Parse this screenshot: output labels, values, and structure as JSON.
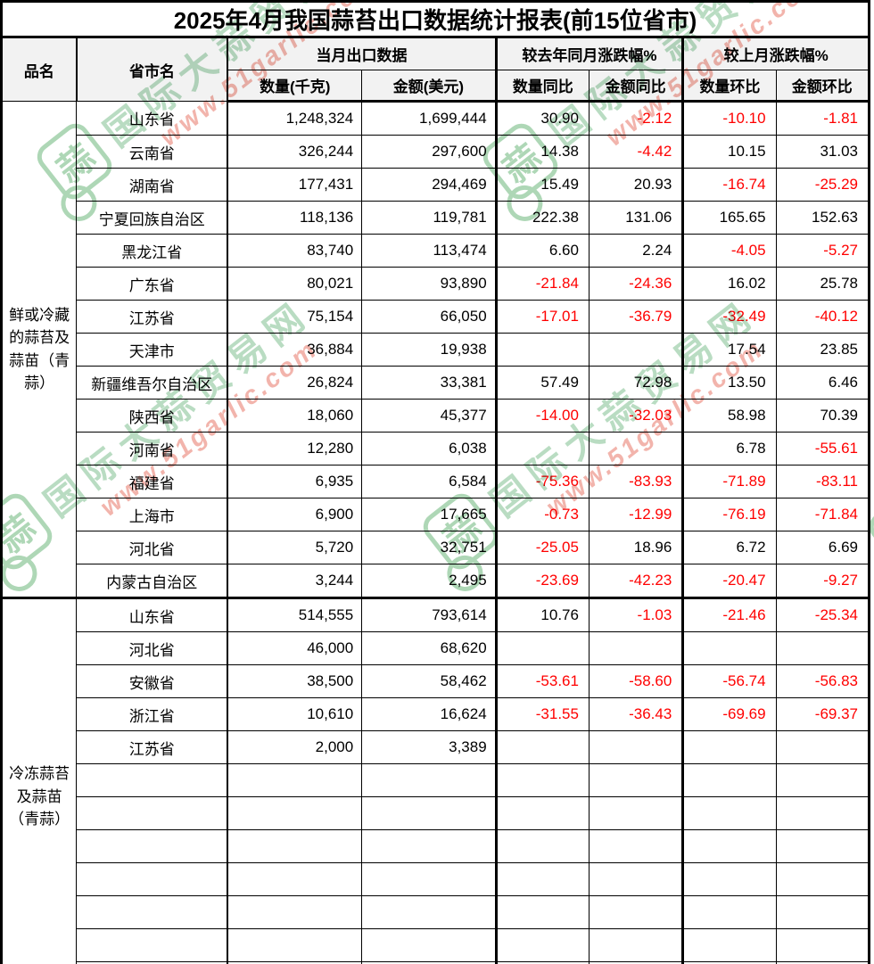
{
  "title": "2025年4月我国蒜苔出口数据统计报表(前15位省市)",
  "header": {
    "col_product": "品名",
    "col_province": "省市名",
    "group_current": "当月出口数据",
    "group_yoy": "较去年同月涨跌幅%",
    "group_mom": "较上月涨跌幅%",
    "sub_qty": "数量(千克)",
    "sub_amt": "金额(美元)",
    "sub_qty_yoy": "数量同比",
    "sub_amt_yoy": "金额同比",
    "sub_qty_mom": "数量环比",
    "sub_amt_mom": "金额环比"
  },
  "groups": [
    {
      "product": "鲜或冷藏的蒜苔及蒜苗（青蒜）",
      "rows": [
        {
          "province": "山东省",
          "qty": "1,248,324",
          "amt": "1,699,444",
          "qty_yoy": "30.90",
          "amt_yoy": "-2.12",
          "qty_mom": "-10.10",
          "amt_mom": "-1.81"
        },
        {
          "province": "云南省",
          "qty": "326,244",
          "amt": "297,600",
          "qty_yoy": "14.38",
          "amt_yoy": "-4.42",
          "qty_mom": "10.15",
          "amt_mom": "31.03"
        },
        {
          "province": "湖南省",
          "qty": "177,431",
          "amt": "294,469",
          "qty_yoy": "15.49",
          "amt_yoy": "20.93",
          "qty_mom": "-16.74",
          "amt_mom": "-25.29"
        },
        {
          "province": "宁夏回族自治区",
          "qty": "118,136",
          "amt": "119,781",
          "qty_yoy": "222.38",
          "amt_yoy": "131.06",
          "qty_mom": "165.65",
          "amt_mom": "152.63"
        },
        {
          "province": "黑龙江省",
          "qty": "83,740",
          "amt": "113,474",
          "qty_yoy": "6.60",
          "amt_yoy": "2.24",
          "qty_mom": "-4.05",
          "amt_mom": "-5.27"
        },
        {
          "province": "广东省",
          "qty": "80,021",
          "amt": "93,890",
          "qty_yoy": "-21.84",
          "amt_yoy": "-24.36",
          "qty_mom": "16.02",
          "amt_mom": "25.78"
        },
        {
          "province": "江苏省",
          "qty": "75,154",
          "amt": "66,050",
          "qty_yoy": "-17.01",
          "amt_yoy": "-36.79",
          "qty_mom": "-32.49",
          "amt_mom": "-40.12"
        },
        {
          "province": "天津市",
          "qty": "36,884",
          "amt": "19,938",
          "qty_yoy": "",
          "amt_yoy": "",
          "qty_mom": "17.54",
          "amt_mom": "23.85"
        },
        {
          "province": "新疆维吾尔自治区",
          "qty": "26,824",
          "amt": "33,381",
          "qty_yoy": "57.49",
          "amt_yoy": "72.98",
          "qty_mom": "13.50",
          "amt_mom": "6.46"
        },
        {
          "province": "陕西省",
          "qty": "18,060",
          "amt": "45,377",
          "qty_yoy": "-14.00",
          "amt_yoy": "-32.03",
          "qty_mom": "58.98",
          "amt_mom": "70.39"
        },
        {
          "province": "河南省",
          "qty": "12,280",
          "amt": "6,038",
          "qty_yoy": "",
          "amt_yoy": "",
          "qty_mom": "6.78",
          "amt_mom": "-55.61"
        },
        {
          "province": "福建省",
          "qty": "6,935",
          "amt": "6,584",
          "qty_yoy": "-75.36",
          "amt_yoy": "-83.93",
          "qty_mom": "-71.89",
          "amt_mom": "-83.11"
        },
        {
          "province": "上海市",
          "qty": "6,900",
          "amt": "17,665",
          "qty_yoy": "-0.73",
          "amt_yoy": "-12.99",
          "qty_mom": "-76.19",
          "amt_mom": "-71.84"
        },
        {
          "province": "河北省",
          "qty": "5,720",
          "amt": "32,751",
          "qty_yoy": "-25.05",
          "amt_yoy": "18.96",
          "qty_mom": "6.72",
          "amt_mom": "6.69"
        },
        {
          "province": "内蒙古自治区",
          "qty": "3,244",
          "amt": "2,495",
          "qty_yoy": "-23.69",
          "amt_yoy": "-42.23",
          "qty_mom": "-20.47",
          "amt_mom": "-9.27"
        }
      ]
    },
    {
      "product": "冷冻蒜苔及蒜苗（青蒜）",
      "rows": [
        {
          "province": "山东省",
          "qty": "514,555",
          "amt": "793,614",
          "qty_yoy": "10.76",
          "amt_yoy": "-1.03",
          "qty_mom": "-21.46",
          "amt_mom": "-25.34"
        },
        {
          "province": "河北省",
          "qty": "46,000",
          "amt": "68,620",
          "qty_yoy": "",
          "amt_yoy": "",
          "qty_mom": "",
          "amt_mom": ""
        },
        {
          "province": "安徽省",
          "qty": "38,500",
          "amt": "58,462",
          "qty_yoy": "-53.61",
          "amt_yoy": "-58.60",
          "qty_mom": "-56.74",
          "amt_mom": "-56.83"
        },
        {
          "province": "浙江省",
          "qty": "10,610",
          "amt": "16,624",
          "qty_yoy": "-31.55",
          "amt_yoy": "-36.43",
          "qty_mom": "-69.69",
          "amt_mom": "-69.37"
        },
        {
          "province": "江苏省",
          "qty": "2,000",
          "amt": "3,389",
          "qty_yoy": "",
          "amt_yoy": "",
          "qty_mom": "",
          "amt_mom": ""
        },
        {
          "province": "",
          "qty": "",
          "amt": "",
          "qty_yoy": "",
          "amt_yoy": "",
          "qty_mom": "",
          "amt_mom": ""
        },
        {
          "province": "",
          "qty": "",
          "amt": "",
          "qty_yoy": "",
          "amt_yoy": "",
          "qty_mom": "",
          "amt_mom": ""
        },
        {
          "province": "",
          "qty": "",
          "amt": "",
          "qty_yoy": "",
          "amt_yoy": "",
          "qty_mom": "",
          "amt_mom": ""
        },
        {
          "province": "",
          "qty": "",
          "amt": "",
          "qty_yoy": "",
          "amt_yoy": "",
          "qty_mom": "",
          "amt_mom": ""
        },
        {
          "province": "",
          "qty": "",
          "amt": "",
          "qty_yoy": "",
          "amt_yoy": "",
          "qty_mom": "",
          "amt_mom": ""
        },
        {
          "province": "",
          "qty": "",
          "amt": "",
          "qty_yoy": "",
          "amt_yoy": "",
          "qty_mom": "",
          "amt_mom": ""
        },
        {
          "province": "",
          "qty": "",
          "amt": "",
          "qty_yoy": "",
          "amt_yoy": "",
          "qty_mom": "",
          "amt_mom": ""
        }
      ]
    }
  ],
  "watermark": {
    "logo_char": "蒜",
    "site_name": "国际大蒜贸易网",
    "site_url": "www.51garlic.com"
  },
  "colors": {
    "negative": "#ff0000",
    "header_bg": "#f2f2f2",
    "border": "#000000",
    "watermark_green": "#b9dcc2",
    "watermark_red": "#f2b4ac"
  }
}
